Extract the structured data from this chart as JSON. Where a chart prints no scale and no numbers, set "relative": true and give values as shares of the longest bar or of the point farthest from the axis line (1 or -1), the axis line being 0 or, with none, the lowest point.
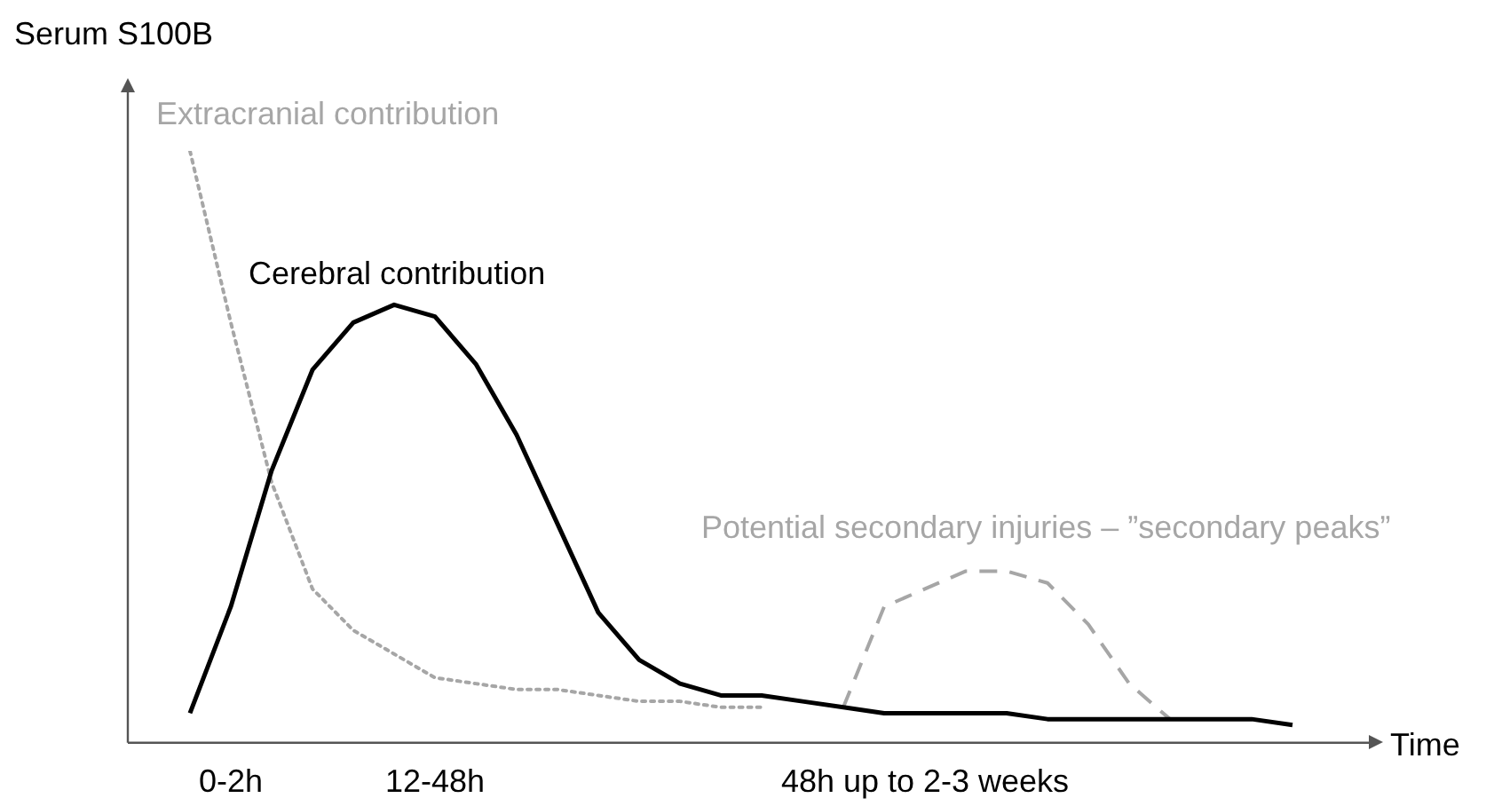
{
  "chart_data": {
    "type": "line",
    "relative": true,
    "ylabel": "Serum S100B",
    "xlabel": "Time",
    "legend": false,
    "grid": false,
    "tick_labels": "x",
    "marker": "none",
    "categories": [
      null,
      null,
      "0-2h",
      null,
      null,
      null,
      null,
      "12-48h",
      null,
      null,
      null,
      null,
      null,
      null,
      null,
      null,
      null,
      null,
      null,
      "48h up to 2-3 weeks",
      null,
      null,
      null,
      null,
      null,
      null,
      null,
      null,
      null
    ],
    "series": [
      {
        "name": "Cerebral contribution",
        "color": "#000000",
        "line_style": "solid",
        "values": [
          null,
          0.05,
          0.23,
          0.46,
          0.63,
          0.71,
          0.74,
          0.72,
          0.64,
          0.52,
          0.37,
          0.22,
          0.14,
          0.1,
          0.08,
          0.08,
          0.07,
          0.06,
          0.05,
          0.05,
          0.05,
          0.05,
          0.04,
          0.04,
          0.04,
          0.04,
          0.04,
          0.04,
          0.03
        ]
      },
      {
        "name": "Extracranial contribution",
        "color": "#a6a6a6",
        "line_style": "dotted",
        "values": [
          null,
          1,
          0.71,
          0.44,
          0.26,
          0.19,
          0.15,
          0.11,
          0.1,
          0.09,
          0.09,
          0.08,
          0.07,
          0.07,
          0.06,
          0.06,
          null,
          null,
          null,
          null,
          null,
          null,
          null,
          null,
          null,
          null,
          null,
          null,
          null
        ]
      },
      {
        "name": "Potential secondary injuries – ”secondary peaks”",
        "color": "#a6a6a6",
        "line_style": "dashed",
        "values": [
          null,
          null,
          null,
          null,
          null,
          null,
          null,
          null,
          null,
          null,
          null,
          null,
          null,
          null,
          null,
          null,
          null,
          0.06,
          0.23,
          0.26,
          0.29,
          0.29,
          0.27,
          0.2,
          0.1,
          0.04,
          null,
          null,
          null
        ]
      }
    ]
  }
}
